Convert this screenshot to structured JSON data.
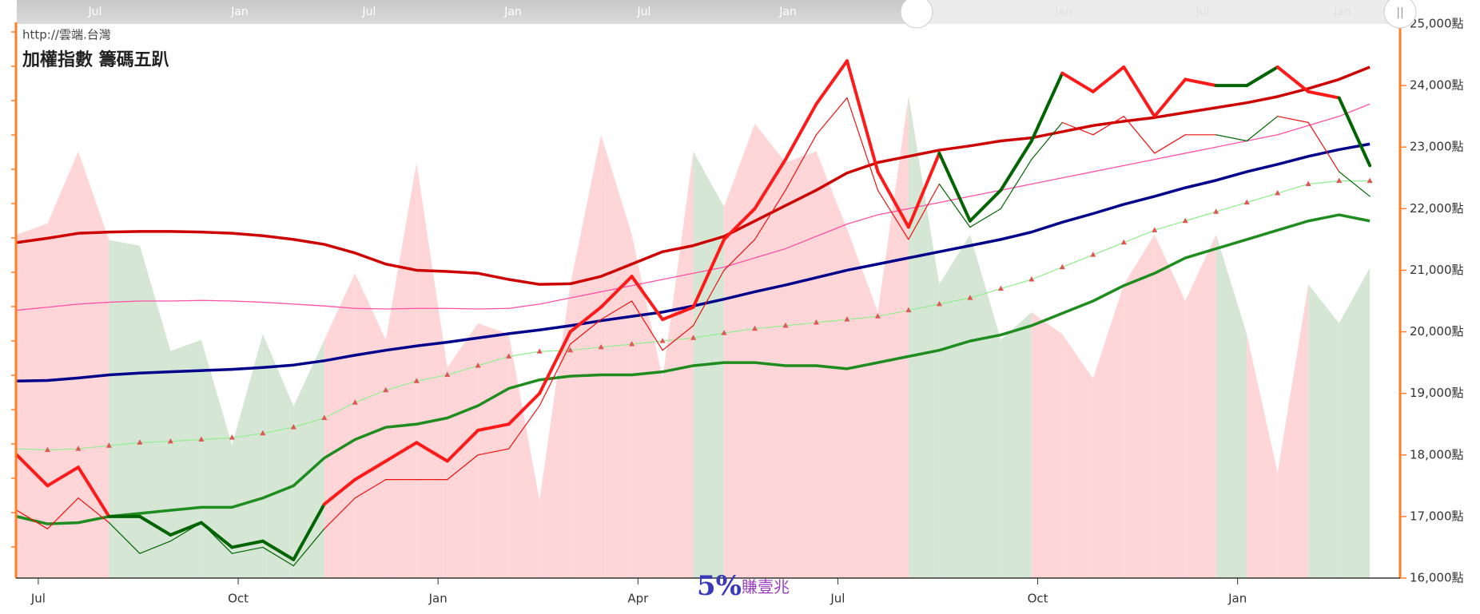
{
  "chart_data": {
    "type": "line",
    "source": "http://雲端.台灣",
    "title": "加權指數 籌碼五趴",
    "watermark": {
      "number": "5%",
      "text": "賺壹兆"
    },
    "navigator": [
      "Jul",
      "Jan",
      "Jul",
      "Jan",
      "Jul",
      "Jan",
      "Jan",
      "Jul",
      "Jan"
    ],
    "x": [
      0,
      2,
      4,
      6,
      8,
      10,
      12,
      14,
      16,
      18,
      20,
      22,
      24,
      26,
      28,
      30,
      32,
      34,
      36,
      38,
      40,
      42,
      44,
      46,
      48,
      50,
      52,
      54,
      56,
      58,
      60,
      62,
      64,
      66,
      68,
      70,
      72,
      74,
      76,
      78,
      80,
      82,
      84,
      86,
      88
    ],
    "xlim": [
      0,
      89.5
    ],
    "xticks": [
      {
        "value": 1.4,
        "label": "Jul"
      },
      {
        "value": 14.4,
        "label": "Oct"
      },
      {
        "value": 27.4,
        "label": "Jan"
      },
      {
        "value": 40.4,
        "label": "Apr"
      },
      {
        "value": 53.4,
        "label": "Jul"
      },
      {
        "value": 66.4,
        "label": "Oct"
      },
      {
        "value": 79.4,
        "label": "Jan"
      }
    ],
    "ylim": [
      16000,
      25000
    ],
    "yticks": [
      {
        "value": 16000,
        "label": "16,000點"
      },
      {
        "value": 17000,
        "label": "17,000點"
      },
      {
        "value": 18000,
        "label": "18,000點"
      },
      {
        "value": 19000,
        "label": "19,000點"
      },
      {
        "value": 20000,
        "label": "20,000點"
      },
      {
        "value": 21000,
        "label": "21,000點"
      },
      {
        "value": 22000,
        "label": "22,000點"
      },
      {
        "value": 23000,
        "label": "23,000點"
      },
      {
        "value": 24000,
        "label": "24,000點"
      },
      {
        "value": 25000,
        "label": "25,000點"
      }
    ],
    "y2lim": [
      0,
      100
    ],
    "series": [
      {
        "style": "area",
        "axis": "y2",
        "values": [
          62,
          64,
          77,
          61,
          60,
          41,
          43,
          24,
          44,
          31,
          43,
          55,
          43,
          75,
          38,
          46,
          44,
          14,
          53,
          80,
          62,
          36,
          77,
          67,
          82,
          75,
          77,
          63,
          48,
          87,
          53,
          62,
          43,
          48,
          44,
          36,
          53,
          62,
          50,
          62,
          44,
          19,
          53,
          46,
          56
        ],
        "colors": [
          "#ffd6d8",
          "#ffd6d8",
          "#ffd6d8",
          "#d5e6d5",
          "#d5e6d5",
          "#d5e6d5",
          "#d5e6d5",
          "#d5e6d5",
          "#d5e6d5",
          "#d5e6d5",
          "#ffd6d8",
          "#ffd6d8",
          "#ffd6d8",
          "#ffd6d8",
          "#ffd6d8",
          "#ffd6d8",
          "#ffd6d8",
          "#ffd6d8",
          "#ffd6d8",
          "#ffd6d8",
          "#ffd6d8",
          "#ffd6d8",
          "#d5e6d5",
          "#ffd6d8",
          "#ffd6d8",
          "#ffd6d8",
          "#ffd6d8",
          "#ffd6d8",
          "#ffd6d8",
          "#d5e6d5",
          "#d5e6d5",
          "#d5e6d5",
          "#d5e6d5",
          "#ffd6d8",
          "#ffd6d8",
          "#ffd6d8",
          "#ffd6d8",
          "#ffd6d8",
          "#ffd6d8",
          "#d5e6d5",
          "#ffd6d8",
          "#ffd6d8",
          "#d5e6d5",
          "#d5e6d5",
          "#d5e6d5"
        ]
      },
      {
        "style": "line",
        "color": "#00008b",
        "width": 3.5,
        "values": [
          19200,
          19210,
          19250,
          19300,
          19330,
          19350,
          19370,
          19390,
          19420,
          19460,
          19530,
          19620,
          19700,
          19770,
          19830,
          19900,
          19970,
          20030,
          20100,
          20180,
          20250,
          20320,
          20420,
          20530,
          20650,
          20760,
          20880,
          21000,
          21100,
          21200,
          21300,
          21400,
          21500,
          21620,
          21780,
          21920,
          22070,
          22200,
          22340,
          22460,
          22600,
          22720,
          22850,
          22960,
          23050
        ]
      },
      {
        "style": "line",
        "color": "#ff4fa8",
        "width": 1.3,
        "values": [
          20350,
          20400,
          20450,
          20480,
          20500,
          20500,
          20510,
          20500,
          20480,
          20450,
          20420,
          20380,
          20370,
          20380,
          20380,
          20370,
          20380,
          20450,
          20550,
          20650,
          20750,
          20850,
          20950,
          21050,
          21200,
          21350,
          21550,
          21750,
          21900,
          22000,
          22100,
          22200,
          22300,
          22400,
          22500,
          22600,
          22700,
          22800,
          22900,
          23000,
          23100,
          23200,
          23350,
          23500,
          23700
        ]
      },
      {
        "style": "line",
        "color": "#cc0000",
        "width": 3.5,
        "values": [
          21450,
          21520,
          21600,
          21620,
          21630,
          21630,
          21620,
          21600,
          21560,
          21500,
          21420,
          21280,
          21100,
          21000,
          20980,
          20950,
          20850,
          20770,
          20780,
          20900,
          21100,
          21300,
          21400,
          21550,
          21800,
          22050,
          22300,
          22580,
          22750,
          22850,
          22950,
          23020,
          23100,
          23150,
          23250,
          23350,
          23420,
          23480,
          23560,
          23640,
          23720,
          23820,
          23950,
          24100,
          24300
        ]
      },
      {
        "style": "line",
        "color": "#90ee90",
        "width": 1.2,
        "markers": "#e05555",
        "values": [
          18100,
          18080,
          18100,
          18150,
          18200,
          18220,
          18250,
          18280,
          18350,
          18450,
          18600,
          18850,
          19050,
          19200,
          19300,
          19450,
          19600,
          19680,
          19700,
          19750,
          19800,
          19850,
          19900,
          19980,
          20050,
          20100,
          20150,
          20200,
          20250,
          20350,
          20450,
          20550,
          20700,
          20850,
          21050,
          21250,
          21450,
          21650,
          21800,
          21950,
          22100,
          22250,
          22400,
          22450,
          22450
        ]
      },
      {
        "style": "line",
        "color": "#1e8c1e",
        "width": 3.5,
        "values": [
          17000,
          16880,
          16900,
          17000,
          17050,
          17100,
          17150,
          17150,
          17300,
          17500,
          17950,
          18250,
          18450,
          18500,
          18600,
          18800,
          19080,
          19220,
          19280,
          19300,
          19300,
          19350,
          19450,
          19500,
          19500,
          19450,
          19450,
          19400,
          19500,
          19600,
          19700,
          19850,
          19950,
          20100,
          20300,
          20500,
          20750,
          20950,
          21200,
          21350,
          21500,
          21650,
          21800,
          21900,
          21800
        ]
      },
      {
        "style": "segments",
        "width": 1.2,
        "values": [
          17100,
          16800,
          17300,
          16900,
          16400,
          16600,
          16900,
          16400,
          16500,
          16200,
          16800,
          17300,
          17600,
          17600,
          17600,
          18000,
          18100,
          18800,
          19800,
          20200,
          20500,
          19700,
          20100,
          21000,
          21500,
          22300,
          23200,
          23800,
          22300,
          21500,
          22400,
          21700,
          22000,
          22800,
          23400,
          23200,
          23500,
          22900,
          23200,
          23200,
          23100,
          23500,
          23400,
          22600,
          22200
        ],
        "colors": [
          "#ee1111",
          "#ee1111",
          "#ee1111",
          "#006400",
          "#006400",
          "#006400",
          "#006400",
          "#006400",
          "#006400",
          "#006400",
          "#ee1111",
          "#ee1111",
          "#ee1111",
          "#ee1111",
          "#ee1111",
          "#ee1111",
          "#ee1111",
          "#ee1111",
          "#ee1111",
          "#ee1111",
          "#ee1111",
          "#ee1111",
          "#ee1111",
          "#ee1111",
          "#ee1111",
          "#ee1111",
          "#ee1111",
          "#ee1111",
          "#ee1111",
          "#ee1111",
          "#006400",
          "#006400",
          "#006400",
          "#006400",
          "#ee1111",
          "#ee1111",
          "#ee1111",
          "#ee1111",
          "#ee1111",
          "#006400",
          "#006400",
          "#ee1111",
          "#ee1111",
          "#006400",
          "#006400"
        ]
      },
      {
        "style": "segments",
        "width": 4,
        "values": [
          18000,
          17500,
          17800,
          17000,
          17000,
          16700,
          16900,
          16500,
          16600,
          16300,
          17200,
          17600,
          17900,
          18200,
          17900,
          18400,
          18500,
          19000,
          20000,
          20400,
          20900,
          20200,
          20400,
          21500,
          22000,
          22800,
          23700,
          24400,
          22600,
          21700,
          22900,
          21800,
          22300,
          23100,
          24200,
          23900,
          24300,
          23500,
          24100,
          24000,
          24000,
          24300,
          23900,
          23800,
          22700
        ],
        "colors": [
          "#ff1a1a",
          "#ff1a1a",
          "#ff1a1a",
          "#006400",
          "#006400",
          "#006400",
          "#006400",
          "#006400",
          "#006400",
          "#006400",
          "#ff1a1a",
          "#ff1a1a",
          "#ff1a1a",
          "#ff1a1a",
          "#ff1a1a",
          "#ff1a1a",
          "#ff1a1a",
          "#ff1a1a",
          "#ff1a1a",
          "#ff1a1a",
          "#ff1a1a",
          "#ff1a1a",
          "#ff1a1a",
          "#ff1a1a",
          "#ff1a1a",
          "#ff1a1a",
          "#ff1a1a",
          "#ff1a1a",
          "#ff1a1a",
          "#ff1a1a",
          "#006400",
          "#006400",
          "#006400",
          "#006400",
          "#ff1a1a",
          "#ff1a1a",
          "#ff1a1a",
          "#ff1a1a",
          "#ff1a1a",
          "#006400",
          "#006400",
          "#ff1a1a",
          "#ff1a1a",
          "#006400",
          "#006400"
        ]
      }
    ]
  }
}
